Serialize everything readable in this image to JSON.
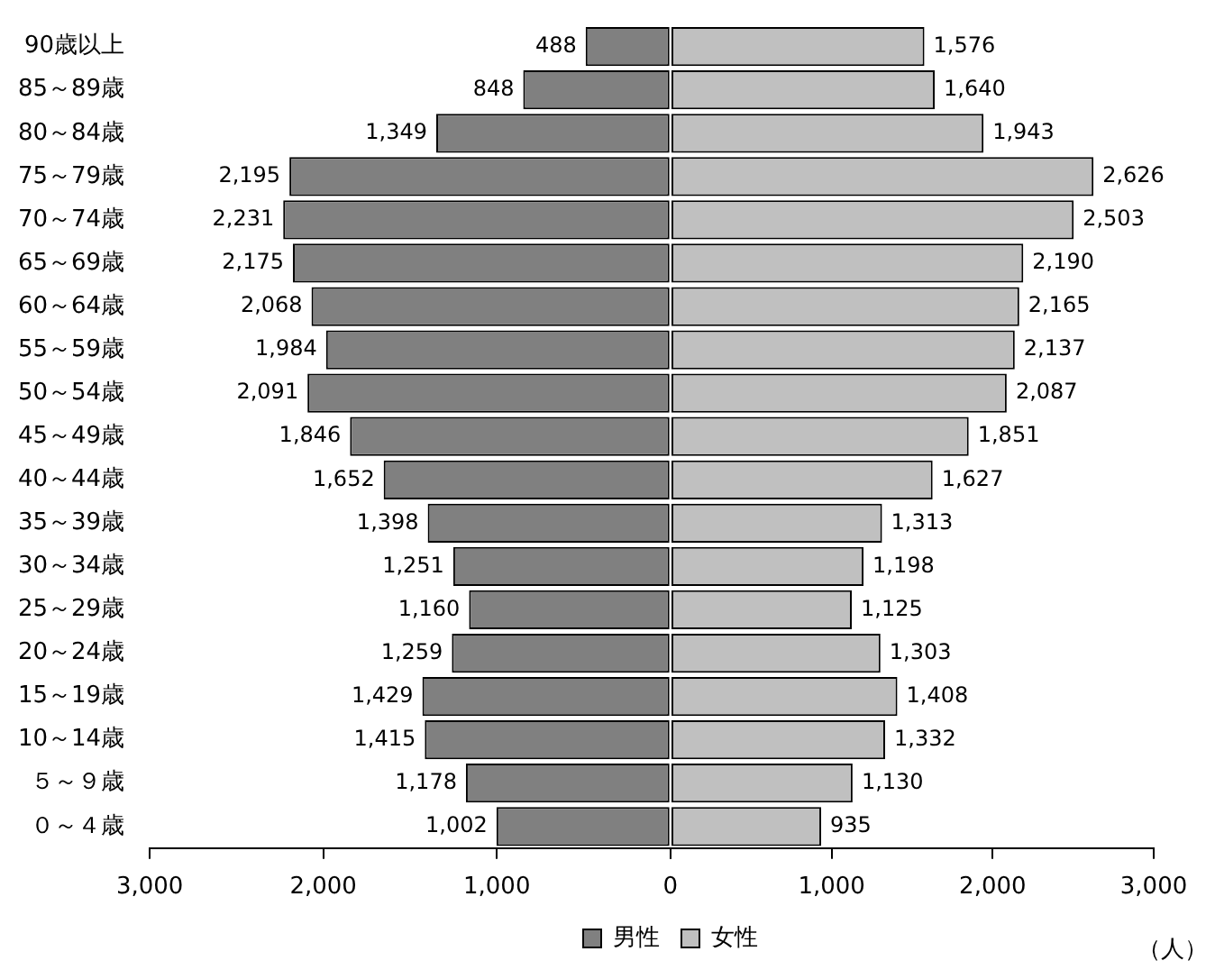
{
  "chart_data": [
    {
      "type": "bar",
      "orientation": "horizontal",
      "legend": "bottom right",
      "categories": [
        "90歳以上",
        "85～89歳",
        "80～84歳",
        "75～79歳",
        "70～74歳",
        "65～69歳",
        "60～64歳",
        "55～59歳",
        "50～54歳",
        "45～49歳",
        "40～44歳",
        "35～39歳",
        "30～34歳",
        "25～29歳",
        "20～24歳",
        "15～19歳",
        "10～14歳",
        "５～９歳",
        "０～４歳"
      ],
      "xlim": [
        3000,
        0
      ],
      "xticks": [
        {
          "value": 3000,
          "label": "3,000"
        },
        {
          "value": 2000,
          "label": "2,000"
        },
        {
          "value": 1000,
          "label": "1,000"
        },
        0
      ],
      "series": [
        {
          "name": "男性",
          "color": "#808080",
          "values": [
            488,
            848,
            1349,
            2195,
            2231,
            2175,
            2068,
            1984,
            2091,
            1846,
            1652,
            1398,
            1251,
            1160,
            1259,
            1429,
            1415,
            1178,
            1002
          ],
          "value_labels": [
            "488",
            "848",
            "1,349",
            "2,195",
            "2,231",
            "2,175",
            "2,068",
            "1,984",
            "2,091",
            "1,846",
            "1,652",
            "1,398",
            "1,251",
            "1,160",
            "1,259",
            "1,429",
            "1,415",
            "1,178",
            "1,002"
          ]
        }
      ]
    },
    {
      "type": "bar",
      "orientation": "horizontal",
      "legend": "bottom left",
      "tick_labels": "x",
      "categories": [
        null,
        null,
        null,
        null,
        null,
        null,
        null,
        null,
        null,
        null,
        null,
        null,
        null,
        null,
        null,
        null,
        null,
        null,
        null
      ],
      "xlim": [
        0,
        3000
      ],
      "xticks": [
        {
          "value": 0,
          "label": null
        },
        {
          "value": 1000,
          "label": "1,000"
        },
        {
          "value": 2000,
          "label": "2,000"
        },
        {
          "value": 3000,
          "label": "3,000"
        }
      ],
      "series": [
        {
          "name": "女性",
          "color": "#c0c0c0",
          "values": [
            1576,
            1640,
            1943,
            2626,
            2503,
            2190,
            2165,
            2137,
            2087,
            1851,
            1627,
            1313,
            1198,
            1125,
            1303,
            1408,
            1332,
            1130,
            935
          ],
          "value_labels": [
            "1,576",
            "1,640",
            "1,943",
            "2,626",
            "2,503",
            "2,190",
            "2,165",
            "2,137",
            "2,087",
            "1,851",
            "1,627",
            "1,313",
            "1,198",
            "1,125",
            "1,303",
            "1,408",
            "1,332",
            "1,130",
            "935"
          ]
        }
      ],
      "annotations": [
        "（人）"
      ]
    }
  ]
}
